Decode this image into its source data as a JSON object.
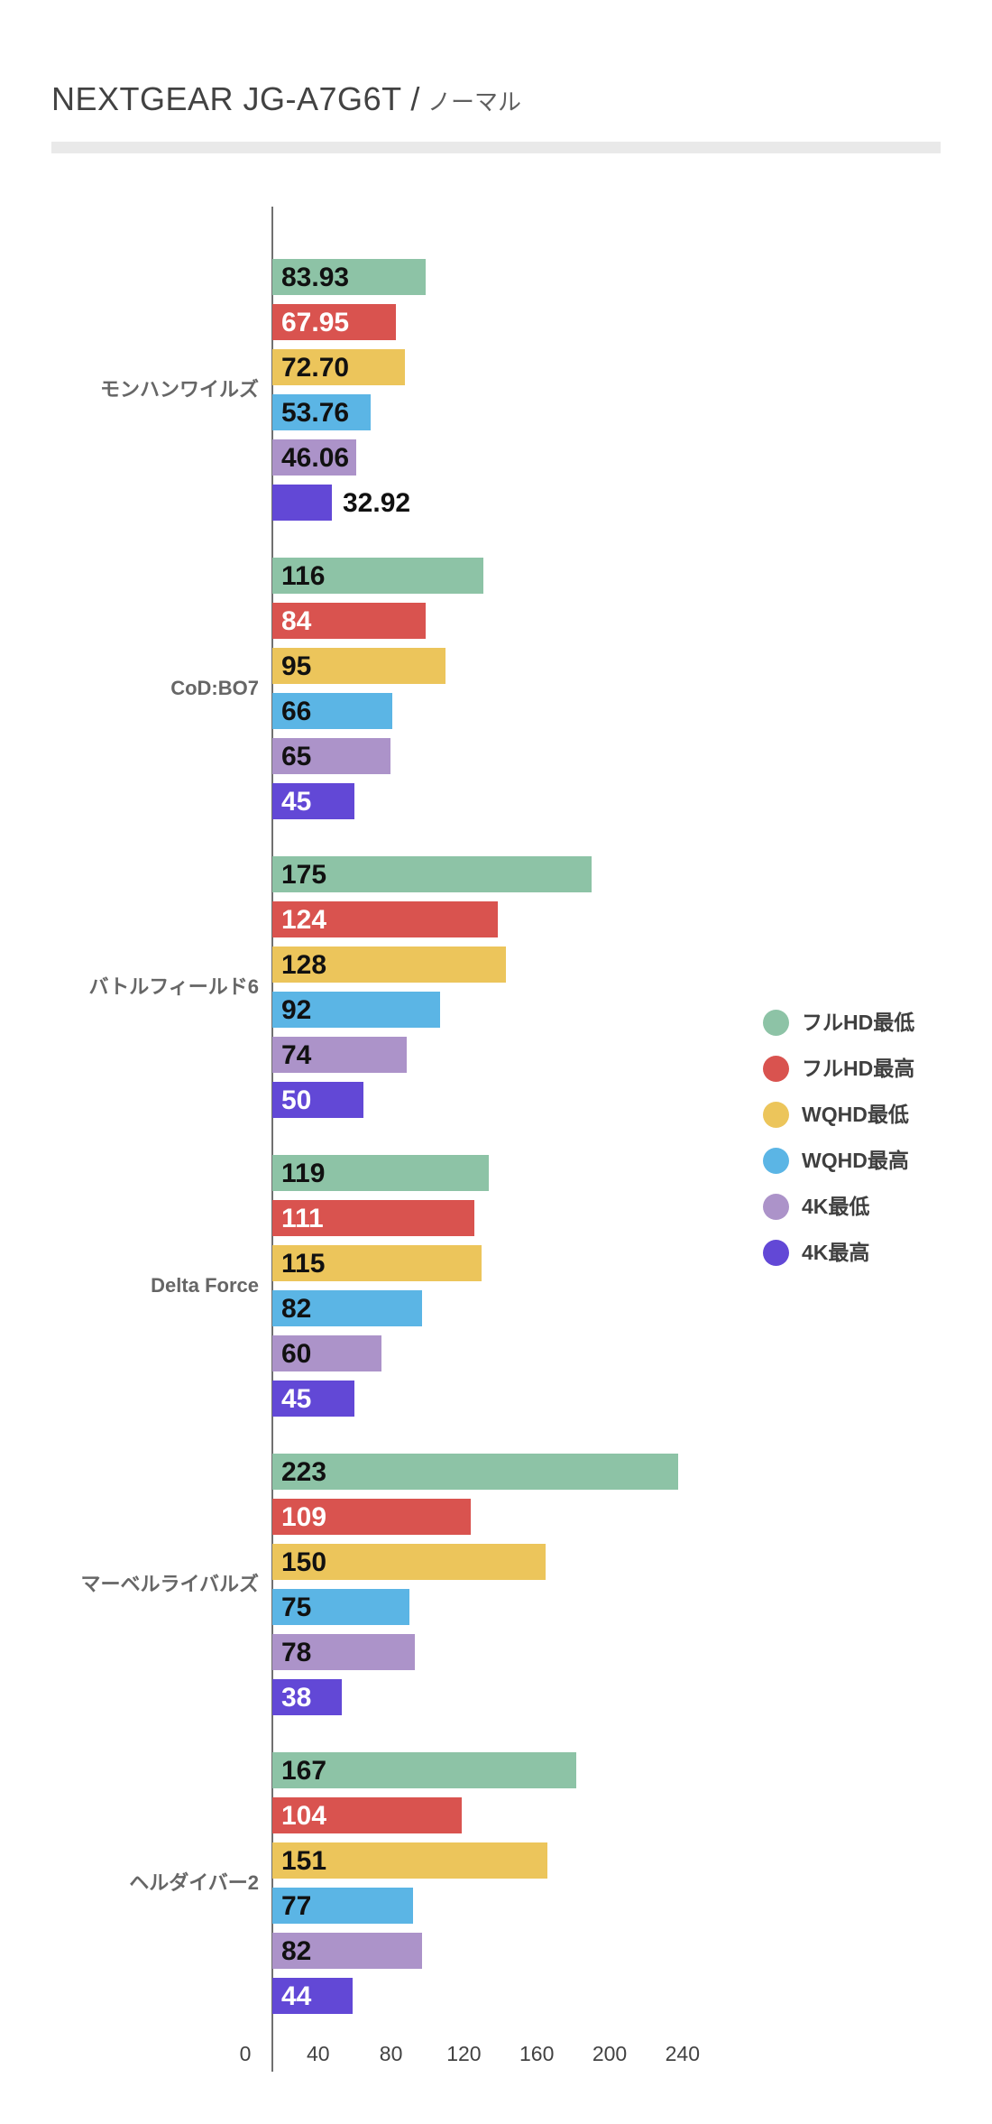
{
  "header": {
    "title_main": "NEXTGEAR JG-A7G6T /",
    "title_sub": "ノーマル"
  },
  "chart_data": {
    "type": "bar",
    "orientation": "horizontal",
    "title": "NEXTGEAR JG-A7G6T / ノーマル",
    "categories": [
      "モンハンワイルズ",
      "CoD:BO7",
      "バトルフィールド6",
      "Delta Force",
      "マーベルライバルズ",
      "ヘルダイバー2"
    ],
    "series": [
      {
        "name": "フルHD最低",
        "color": "#8dc3a6",
        "label_color": "#111111",
        "values": [
          "83.93",
          "116",
          "175",
          "119",
          "223",
          "167"
        ]
      },
      {
        "name": "フルHD最高",
        "color": "#d9534f",
        "label_color": "#ffffff",
        "values": [
          "67.95",
          "84",
          "124",
          "111",
          "109",
          "104"
        ]
      },
      {
        "name": "WQHD最低",
        "color": "#ecc55b",
        "label_color": "#111111",
        "values": [
          "72.70",
          "95",
          "128",
          "115",
          "150",
          "151"
        ]
      },
      {
        "name": "WQHD最高",
        "color": "#5bb5e5",
        "label_color": "#111111",
        "values": [
          "53.76",
          "66",
          "92",
          "82",
          "75",
          "77"
        ]
      },
      {
        "name": "4K最低",
        "color": "#ac93c9",
        "label_color": "#111111",
        "values": [
          "46.06",
          "65",
          "74",
          "60",
          "78",
          "82"
        ]
      },
      {
        "name": "4K最高",
        "color": "#6248d6",
        "label_color": "#ffffff",
        "values": [
          "32.92",
          "45",
          "50",
          "45",
          "38",
          "44"
        ]
      }
    ],
    "x_axis": {
      "ticks": [
        "0",
        "40",
        "80",
        "120",
        "160",
        "200",
        "240"
      ],
      "range": [
        0,
        240
      ],
      "grid": false
    },
    "legend_position": "right",
    "value_labels": "inside-start, outside if bar too short"
  }
}
